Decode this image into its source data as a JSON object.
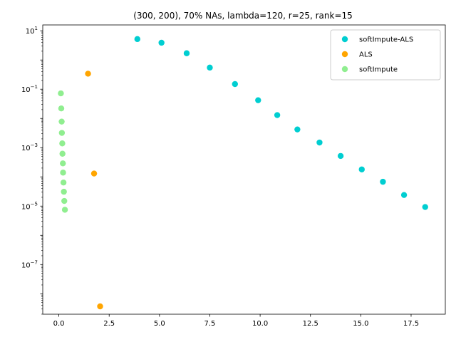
{
  "chart_data": {
    "type": "scatter",
    "title": "(300, 200), 70% NAs, lambda=120, r=25, rank=15",
    "xlabel": "",
    "ylabel": "",
    "xlim": [
      -0.8,
      19.2
    ],
    "xticks": [
      0.0,
      2.5,
      5.0,
      7.5,
      10.0,
      12.5,
      15.0,
      17.5
    ],
    "xtick_labels": [
      "0.0",
      "2.5",
      "5.0",
      "7.5",
      "10.0",
      "12.5",
      "15.0",
      "17.5"
    ],
    "yscale": "log",
    "ylim_log10": [
      -8.7,
      1.2
    ],
    "yticks_log10": [
      1,
      -1,
      -3,
      -5,
      -7
    ],
    "grid": false,
    "legend_position": "top-right",
    "series": [
      {
        "name": "softImpute-ALS",
        "color": "#00CED1",
        "points": [
          {
            "x": 3.9,
            "y": 5.2
          },
          {
            "x": 5.1,
            "y": 3.9
          },
          {
            "x": 6.35,
            "y": 1.7
          },
          {
            "x": 7.5,
            "y": 0.55
          },
          {
            "x": 8.75,
            "y": 0.15
          },
          {
            "x": 9.9,
            "y": 0.042
          },
          {
            "x": 10.85,
            "y": 0.013
          },
          {
            "x": 11.85,
            "y": 0.0042
          },
          {
            "x": 12.95,
            "y": 0.0015
          },
          {
            "x": 14.0,
            "y": 0.00052
          },
          {
            "x": 15.05,
            "y": 0.00018
          },
          {
            "x": 16.1,
            "y": 6.8e-05
          },
          {
            "x": 17.15,
            "y": 2.4e-05
          },
          {
            "x": 18.2,
            "y": 9.3e-06
          }
        ]
      },
      {
        "name": "ALS",
        "color": "#FFA500",
        "points": [
          {
            "x": 1.45,
            "y": 0.34
          },
          {
            "x": 1.75,
            "y": 0.00013
          },
          {
            "x": 2.05,
            "y": 3.7e-09
          }
        ]
      },
      {
        "name": "softImpute",
        "color": "#90EE90",
        "points": [
          {
            "x": 0.1,
            "y": 0.072
          },
          {
            "x": 0.12,
            "y": 0.022
          },
          {
            "x": 0.14,
            "y": 0.0078
          },
          {
            "x": 0.15,
            "y": 0.0032
          },
          {
            "x": 0.17,
            "y": 0.0014
          },
          {
            "x": 0.18,
            "y": 0.00062
          },
          {
            "x": 0.2,
            "y": 0.00029
          },
          {
            "x": 0.21,
            "y": 0.00014
          },
          {
            "x": 0.23,
            "y": 6.4e-05
          },
          {
            "x": 0.25,
            "y": 3.1e-05
          },
          {
            "x": 0.27,
            "y": 1.5e-05
          },
          {
            "x": 0.3,
            "y": 7.5e-06
          }
        ]
      }
    ]
  }
}
